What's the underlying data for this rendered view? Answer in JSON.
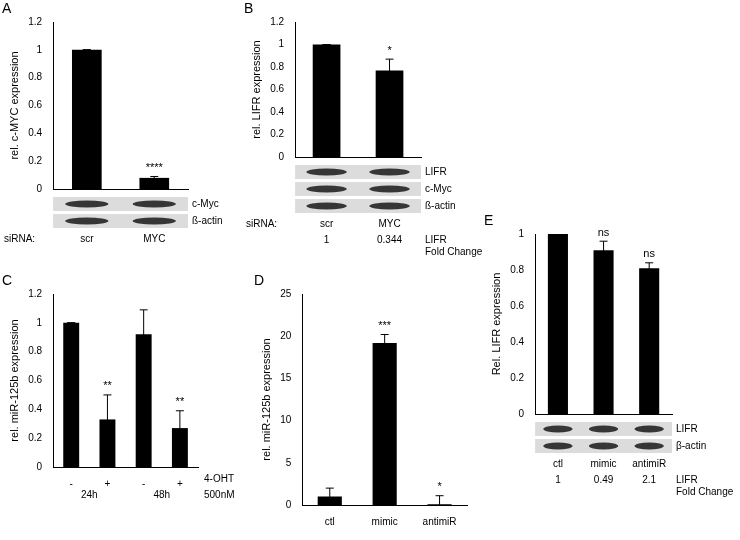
{
  "chart_data": [
    {
      "panel": "A",
      "type": "bar",
      "y_label": "rel. c-MYC expression",
      "categories": [
        "scr",
        "MYC"
      ],
      "values": [
        1,
        0.08
      ],
      "errors": [
        0,
        0.01
      ],
      "annotations": [
        null,
        "****"
      ],
      "color": "#000000",
      "ylim": [
        0,
        1.2
      ],
      "yticks": [
        0,
        0.2,
        0.4,
        0.6,
        0.8,
        1,
        1.2
      ],
      "grid": false,
      "x_row_label": "siRNA:",
      "blots": [
        "c-Myc",
        "ß-actin"
      ]
    },
    {
      "panel": "B",
      "type": "bar",
      "y_label": "rel. LIFR expression",
      "categories": [
        "scr",
        "MYC"
      ],
      "values": [
        1,
        0.77
      ],
      "errors": [
        0,
        0.1
      ],
      "annotations": [
        null,
        "*"
      ],
      "color": "#000000",
      "ylim": [
        0,
        1.2
      ],
      "yticks": [
        0,
        0.2,
        0.4,
        0.6,
        0.8,
        1,
        1.2
      ],
      "grid": false,
      "x_row_label": "siRNA:",
      "blots": [
        "LIFR",
        "c-Myc",
        "ß-actin"
      ],
      "fold_change": [
        1,
        0.344
      ],
      "fold_change_label": "LIFR Fold Change"
    },
    {
      "panel": "C",
      "type": "bar",
      "y_label": "rel. miR-125b expression",
      "categories": [
        "-",
        "+",
        "-",
        "+"
      ],
      "values": [
        1,
        0.33,
        0.92,
        0.27
      ],
      "errors": [
        0,
        0.17,
        0.17,
        0.12
      ],
      "annotations": [
        null,
        "**",
        null,
        "**"
      ],
      "color": "#000000",
      "ylim": [
        0,
        1.2
      ],
      "yticks": [
        0,
        0.2,
        0.4,
        0.6,
        0.8,
        1,
        1.2
      ],
      "grid": false,
      "group_labels": [
        "24h",
        "48h"
      ],
      "x_row_label": "4-OHT 500nM"
    },
    {
      "panel": "D",
      "type": "bar",
      "y_label": "rel. miR-125b expression",
      "categories": [
        "ctl",
        "mimic",
        "antimiR"
      ],
      "values": [
        1,
        19.2,
        0.1
      ],
      "errors": [
        1,
        1,
        1
      ],
      "annotations": [
        null,
        "***",
        "*"
      ],
      "color": "#000000",
      "ylim": [
        0,
        25
      ],
      "yticks": [
        0,
        5,
        10,
        15,
        20,
        25
      ],
      "grid": false
    },
    {
      "panel": "E",
      "type": "bar",
      "y_label": "Rel. LIFR expression",
      "categories": [
        "ctl",
        "mimic",
        "antimiR"
      ],
      "values": [
        1,
        0.91,
        0.81
      ],
      "errors": [
        0,
        0.05,
        0.03
      ],
      "annotations": [
        null,
        "ns",
        "ns"
      ],
      "color": "#000000",
      "ylim": [
        0,
        1
      ],
      "yticks": [
        0,
        0.2,
        0.4,
        0.6,
        0.8,
        1
      ],
      "grid": false,
      "blots": [
        "LIFR",
        "β-actin"
      ],
      "fold_change": [
        1,
        0.49,
        2.1
      ],
      "fold_change_label": "LIFR Fold Change"
    }
  ]
}
